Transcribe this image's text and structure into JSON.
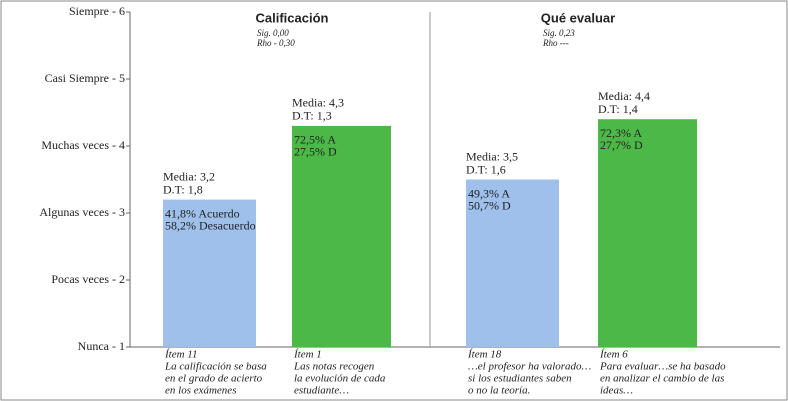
{
  "chart_data": {
    "type": "bar",
    "categories": [
      "Ítem 11",
      "Ítem 1",
      "Ítem 18",
      "Ítem 6"
    ],
    "values": [
      3.2,
      4.3,
      3.5,
      4.4
    ],
    "value_labels": [
      "Media:  3,2",
      "Media: 4,3",
      "Media: 3,5",
      "Media: 4,4"
    ],
    "colors": [
      "#9ec0ea",
      "#4cb848",
      "#9ec0ea",
      "#4cb848"
    ],
    "details": [
      [
        "D.T: 1,8",
        "41,8% Acuerdo",
        "58,2% Desacuerdo"
      ],
      [
        "D.T: 1,3",
        "72,5% A",
        "27,5% D"
      ],
      [
        "D.T: 1,6",
        "49,3% A",
        "50,7% D"
      ],
      [
        "D.T: 1,4",
        "72,3% A",
        "27,7% D"
      ]
    ],
    "captions": [
      [
        "La calificación se basa",
        "en el grado de acierto",
        "en los exámenes"
      ],
      [
        "Las notas  recogen",
        "la evolución de cada",
        "estudiante…"
      ],
      [
        "…el profesor ha valorado…",
        "si los estudiantes saben",
        "o no la teoría."
      ],
      [
        "Para evaluar…se ha basado",
        "en analizar el cambio de las",
        "ideas…"
      ]
    ],
    "groups": [
      {
        "title": "Calificación",
        "notes": [
          "Sig. 0,00",
          "Rho - 0,30"
        ]
      },
      {
        "title": "Qué evaluar",
        "notes": [
          "Sig. 0,23",
          "Rho  ---"
        ]
      }
    ],
    "ylim": [
      1,
      6
    ],
    "yticks": [
      {
        "value": 1,
        "label": "Nunca - 1"
      },
      {
        "value": 2,
        "label": "Pocas veces - 2"
      },
      {
        "value": 3,
        "label": "Algunas veces - 3"
      },
      {
        "value": 4,
        "label": "Muchas veces - 4"
      },
      {
        "value": 5,
        "label": "Casi Siempre - 5"
      },
      {
        "value": 6,
        "label": "Siempre - 6"
      }
    ]
  }
}
